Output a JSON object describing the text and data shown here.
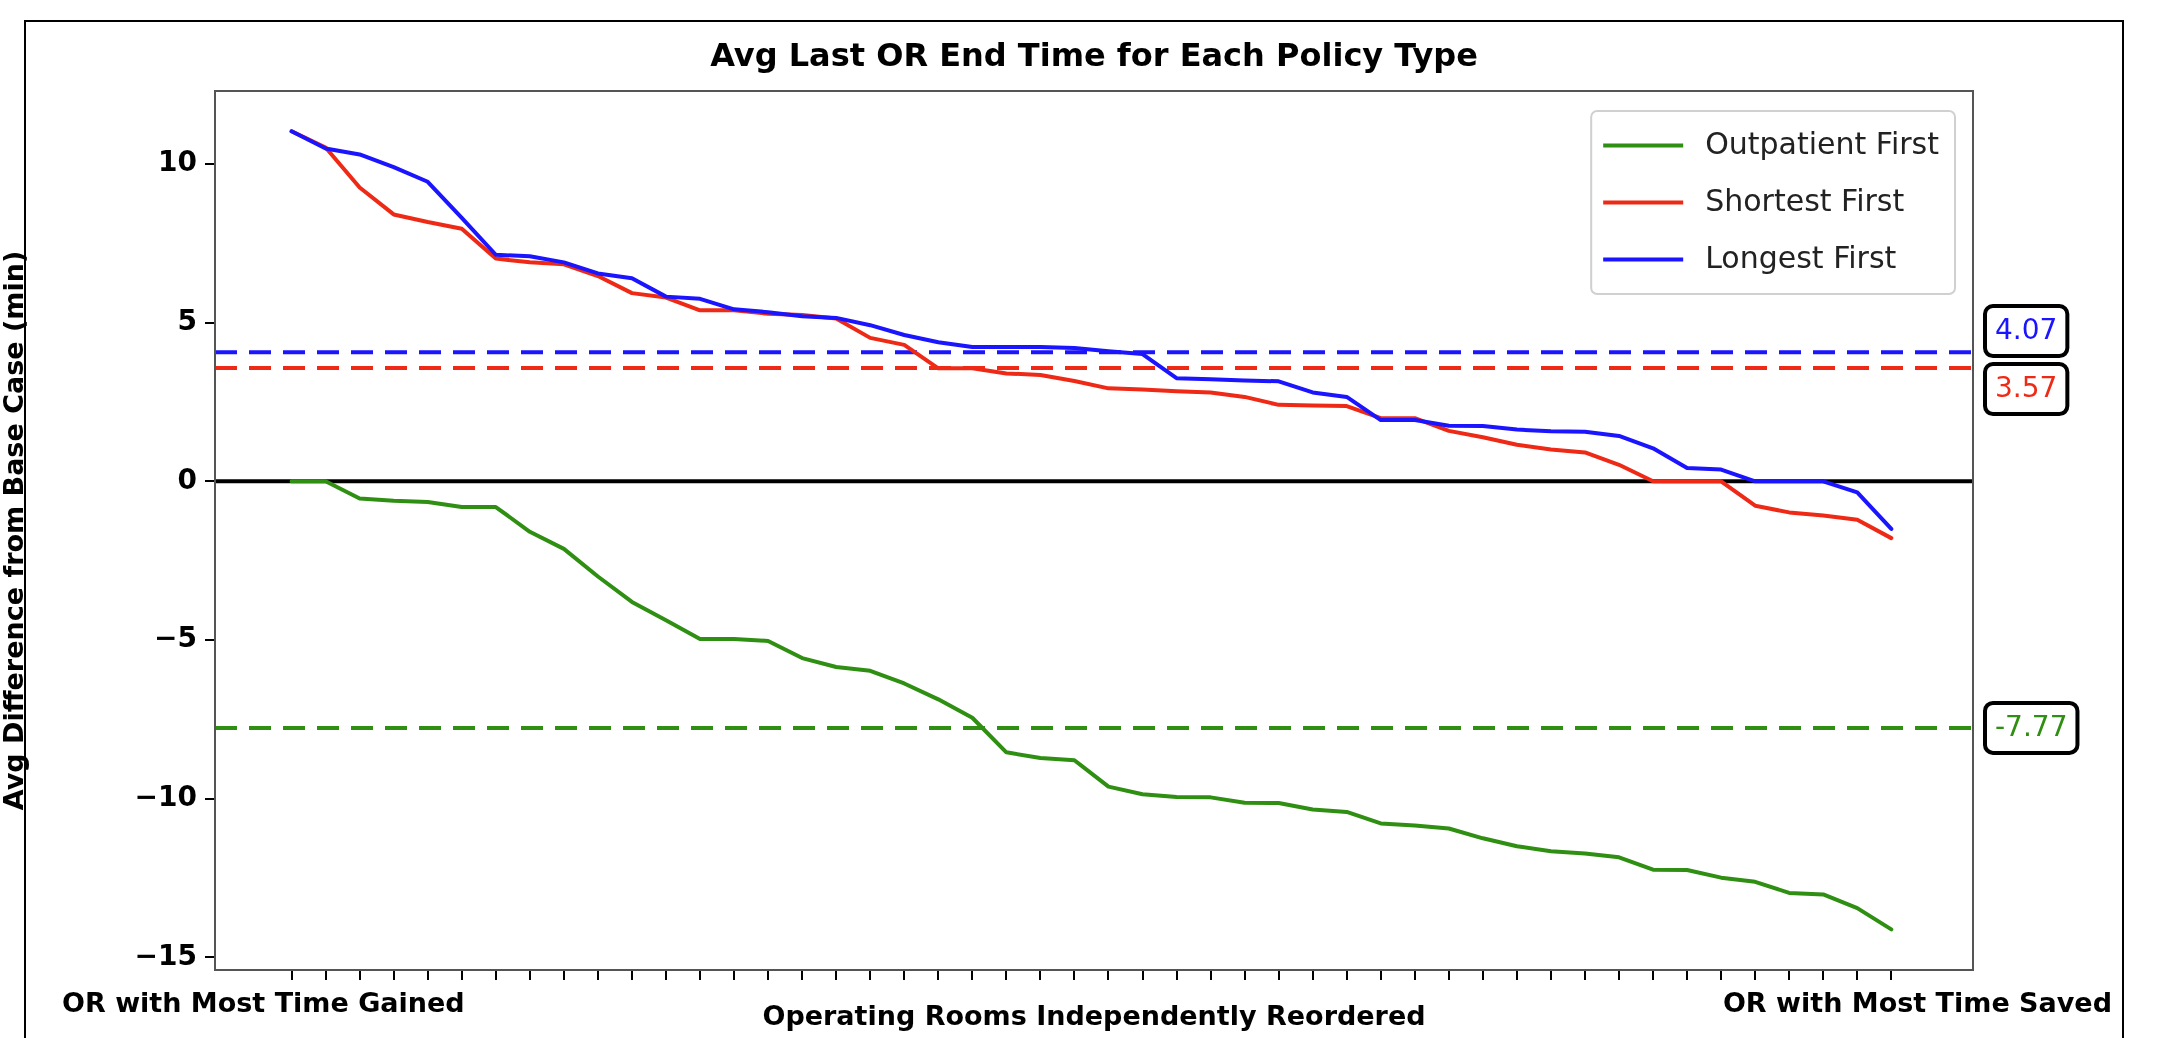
{
  "chart_data": {
    "type": "line",
    "title": "Avg Last OR End Time for Each Policy Type",
    "xlabel": "Operating Rooms Independently Reordered",
    "ylabel": "Avg Difference from Base Case (min)",
    "categories": [
      null,
      null,
      null,
      null,
      null,
      null,
      null,
      null,
      null,
      null,
      null,
      null,
      null,
      null,
      null,
      null,
      null,
      null,
      null,
      null,
      null,
      null,
      null,
      null,
      null,
      null,
      null,
      null,
      null,
      null,
      null,
      null,
      null,
      null,
      null,
      null,
      null,
      null,
      null,
      null,
      null,
      null,
      null,
      null,
      null,
      null,
      null,
      null
    ],
    "series": [
      {
        "name": "Outpatient First",
        "color": "#2f8f12",
        "values": [
          0,
          0,
          -0.54,
          -0.61,
          -0.65,
          -0.81,
          -0.81,
          -1.59,
          -2.13,
          -3.0,
          -3.8,
          -4.38,
          -4.97,
          -4.97,
          -5.03,
          -5.57,
          -5.85,
          -5.97,
          -6.37,
          -6.87,
          -7.45,
          -8.54,
          -8.72,
          -8.79,
          -9.62,
          -9.86,
          -9.95,
          -9.96,
          -10.13,
          -10.14,
          -10.34,
          -10.42,
          -10.78,
          -10.85,
          -10.94,
          -11.25,
          -11.5,
          -11.66,
          -11.73,
          -11.85,
          -12.24,
          -12.25,
          -12.49,
          -12.62,
          -12.97,
          -13.02,
          -13.45,
          -14.12
        ]
      },
      {
        "name": "Shortest First",
        "color": "#ee2a16",
        "values": [
          11.03,
          10.52,
          9.26,
          8.41,
          8.17,
          7.96,
          7.02,
          6.9,
          6.84,
          6.47,
          5.93,
          5.79,
          5.39,
          5.39,
          5.28,
          5.24,
          5.13,
          4.52,
          4.3,
          3.56,
          3.56,
          3.4,
          3.35,
          3.16,
          2.93,
          2.89,
          2.84,
          2.8,
          2.66,
          2.41,
          2.39,
          2.37,
          1.99,
          1.99,
          1.59,
          1.39,
          1.15,
          1.0,
          0.91,
          0.52,
          0,
          0,
          0,
          -0.77,
          -0.98,
          -1.08,
          -1.21,
          -1.79
        ]
      },
      {
        "name": "Longest First",
        "color": "#1a14ff",
        "values": [
          11.03,
          10.49,
          10.3,
          9.9,
          9.44,
          8.3,
          7.14,
          7.09,
          6.9,
          6.55,
          6.4,
          5.82,
          5.75,
          5.42,
          5.33,
          5.2,
          5.15,
          4.92,
          4.61,
          4.38,
          4.23,
          4.23,
          4.23,
          4.2,
          4.1,
          4.01,
          3.25,
          3.22,
          3.18,
          3.15,
          2.8,
          2.66,
          1.93,
          1.93,
          1.75,
          1.74,
          1.63,
          1.58,
          1.56,
          1.43,
          1.04,
          0.42,
          0.37,
          0,
          0,
          0,
          -0.35,
          -1.5
        ]
      }
    ],
    "ylim": [
      -15.4,
      12.3
    ],
    "yticks": [
      {
        "value": -15,
        "label": "−15"
      },
      {
        "value": -10,
        "label": "−10"
      },
      {
        "value": -5,
        "label": "−5"
      },
      0,
      5,
      10
    ],
    "ref_lines": [
      {
        "axis": "y",
        "value": 0,
        "color": "#000000",
        "line_style": "solid"
      },
      {
        "axis": "y",
        "value": 4.07,
        "label": "4.07",
        "color": "#1a14ff",
        "line_style": "dashed"
      },
      {
        "axis": "y",
        "value": 3.57,
        "label": "3.57",
        "color": "#ee2a16",
        "line_style": "dashed"
      },
      {
        "axis": "y",
        "value": -7.77,
        "label": "-7.77",
        "color": "#2f8f12",
        "line_style": "dashed"
      }
    ],
    "annotations": [
      "OR with Most Time Gained",
      "OR with Most Time Saved"
    ],
    "legend": "top right",
    "grid": false,
    "tick_labels": "y",
    "marker": "none",
    "line_style": "solid"
  }
}
